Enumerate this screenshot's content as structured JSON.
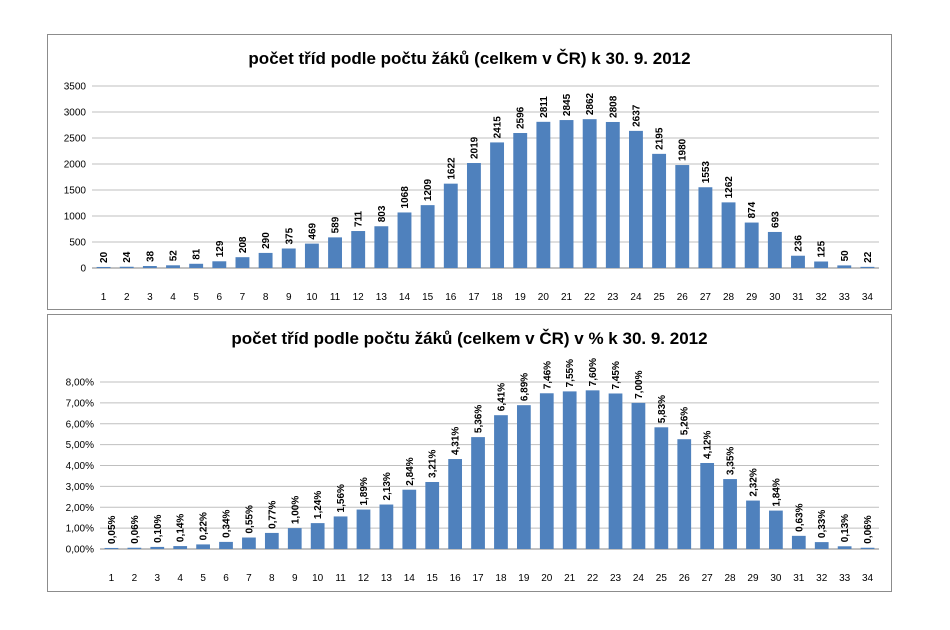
{
  "chart_data": [
    {
      "type": "bar",
      "title": "počet tříd podle počtu žáků (celkem v ČR) k 30. 9. 2012",
      "categories": [
        "1",
        "2",
        "3",
        "4",
        "5",
        "6",
        "7",
        "8",
        "9",
        "10",
        "11",
        "12",
        "13",
        "14",
        "15",
        "16",
        "17",
        "18",
        "19",
        "20",
        "21",
        "22",
        "23",
        "24",
        "25",
        "26",
        "27",
        "28",
        "29",
        "30",
        "31",
        "32",
        "33",
        "34"
      ],
      "values": [
        20,
        24,
        38,
        52,
        81,
        129,
        208,
        290,
        375,
        469,
        589,
        711,
        803,
        1068,
        1209,
        1622,
        2019,
        2415,
        2596,
        2811,
        2845,
        2862,
        2808,
        2637,
        2195,
        1980,
        1553,
        1262,
        874,
        693,
        236,
        125,
        50,
        22
      ],
      "data_labels": [
        "20",
        "24",
        "38",
        "52",
        "81",
        "129",
        "208",
        "290",
        "375",
        "469",
        "589",
        "711",
        "803",
        "1068",
        "1209",
        "1622",
        "2019",
        "2415",
        "2596",
        "2811",
        "2845",
        "2862",
        "2808",
        "2637",
        "2195",
        "1980",
        "1553",
        "1262",
        "874",
        "693",
        "236",
        "125",
        "50",
        "22"
      ],
      "yticks": [
        "0",
        "500",
        "1000",
        "1500",
        "2000",
        "2500",
        "3000",
        "3500"
      ],
      "ylim": [
        0,
        3500
      ],
      "grid": true,
      "bar_color": "#4f81bd"
    },
    {
      "type": "bar",
      "title": "počet tříd podle počtu žáků (celkem v ČR) v % k 30. 9. 2012",
      "categories": [
        "1",
        "2",
        "3",
        "4",
        "5",
        "6",
        "7",
        "8",
        "9",
        "10",
        "11",
        "12",
        "13",
        "14",
        "15",
        "16",
        "17",
        "18",
        "19",
        "20",
        "21",
        "22",
        "23",
        "24",
        "25",
        "26",
        "27",
        "28",
        "29",
        "30",
        "31",
        "32",
        "33",
        "34"
      ],
      "values": [
        0.05,
        0.06,
        0.1,
        0.14,
        0.22,
        0.34,
        0.55,
        0.77,
        1.0,
        1.24,
        1.56,
        1.89,
        2.13,
        2.84,
        3.21,
        4.31,
        5.36,
        6.41,
        6.89,
        7.46,
        7.55,
        7.6,
        7.45,
        7.0,
        5.83,
        5.26,
        4.12,
        3.35,
        2.32,
        1.84,
        0.63,
        0.33,
        0.13,
        0.06
      ],
      "data_labels": [
        "0,05%",
        "0,06%",
        "0,10%",
        "0,14%",
        "0,22%",
        "0,34%",
        "0,55%",
        "0,77%",
        "1,00%",
        "1,24%",
        "1,56%",
        "1,89%",
        "2,13%",
        "2,84%",
        "3,21%",
        "4,31%",
        "5,36%",
        "6,41%",
        "6,89%",
        "7,46%",
        "7,55%",
        "7,60%",
        "7,45%",
        "7,00%",
        "5,83%",
        "5,26%",
        "4,12%",
        "3,35%",
        "2,32%",
        "1,84%",
        "0,63%",
        "0,33%",
        "0,13%",
        "0,06%"
      ],
      "yticks": [
        "0,00%",
        "1,00%",
        "2,00%",
        "3,00%",
        "4,00%",
        "5,00%",
        "6,00%",
        "7,00%",
        "8,00%"
      ],
      "ylim": [
        0,
        8
      ],
      "grid": true,
      "bar_color": "#4f81bd"
    }
  ]
}
